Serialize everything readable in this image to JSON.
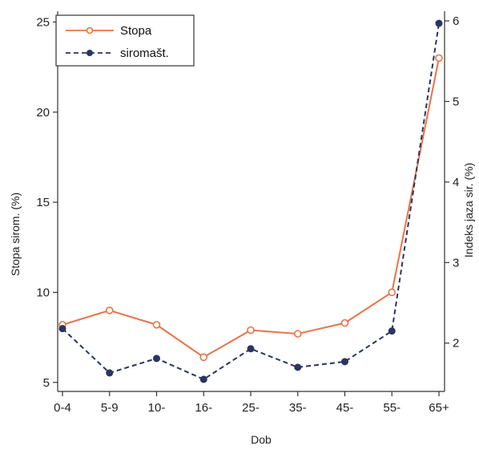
{
  "chart_data": {
    "type": "line",
    "categories": [
      "0-4",
      "5-9",
      "10-",
      "16-",
      "25-",
      "35-",
      "45-",
      "55-",
      "65+"
    ],
    "series": [
      {
        "name": "Stopa",
        "axis": "left",
        "color": "#e8734a",
        "values": [
          8.2,
          9.0,
          8.2,
          6.4,
          7.9,
          7.7,
          8.3,
          10.0,
          23.0
        ]
      },
      {
        "name": "siromašt.",
        "axis": "right",
        "color": "#2a3560",
        "values": [
          2.18,
          1.63,
          1.81,
          1.55,
          1.93,
          1.7,
          1.77,
          2.15,
          5.97
        ]
      }
    ],
    "xlabel": "Dob",
    "ylabel_left": "Stopa sirom. (%)",
    "ylabel_right": "Indeks jaza sir. (%)",
    "y_left": {
      "ticks": [
        5,
        10,
        15,
        20,
        25
      ],
      "tick_labels": [
        "5",
        "10",
        "15",
        "20",
        "25"
      ],
      "range": [
        4.5,
        25.6
      ]
    },
    "y_right": {
      "ticks": [
        2,
        3,
        4,
        5,
        6
      ],
      "tick_labels": [
        "2",
        "3",
        "4",
        "5",
        "6"
      ],
      "range": [
        1.4,
        6.12
      ]
    },
    "grid": false,
    "legend_position": "top-left"
  }
}
